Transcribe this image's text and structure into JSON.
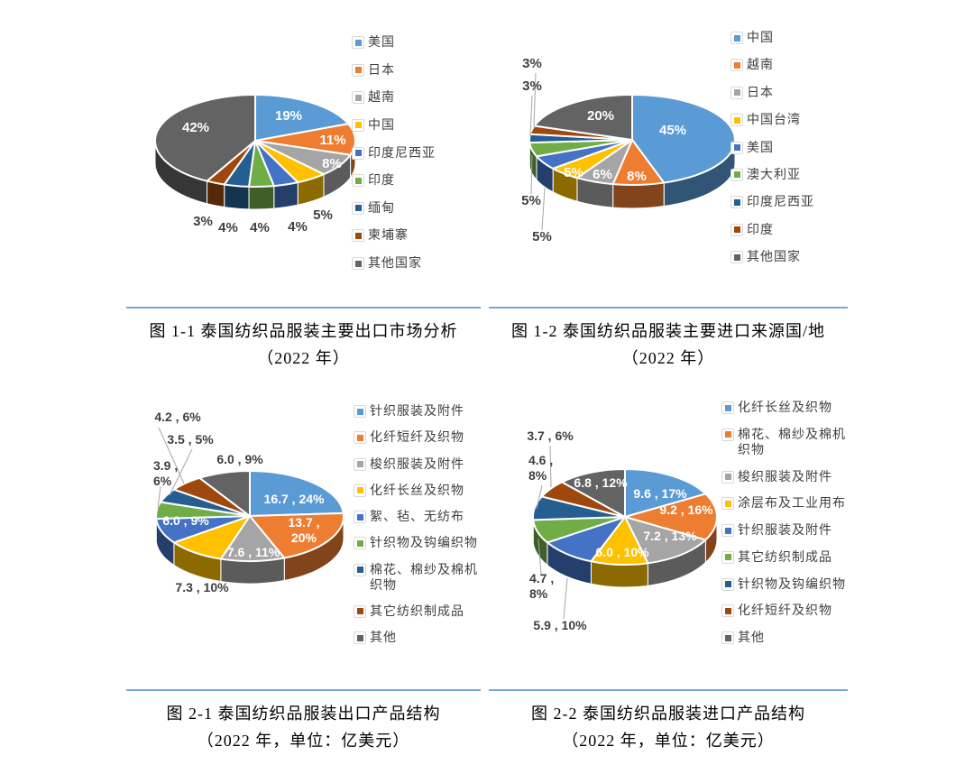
{
  "page": {
    "background": "#FFFFFF"
  },
  "palette": [
    "#5B9BD5",
    "#ED7D31",
    "#A5A5A5",
    "#FFC000",
    "#4472C4",
    "#70AD47",
    "#255E91",
    "#9E480E",
    "#636363"
  ],
  "styles": {
    "divider_color": "#79A7D9",
    "label_in_color": "#FFFFFF",
    "label_out_color": "#3F3F3F",
    "legend_text_color": "#404040",
    "leader_line_color": "#A6A6A6"
  },
  "chart_data": [
    {
      "id": "fig-1-1",
      "type": "pie",
      "title": "图 1-1 泰国纺织品服装主要出口市场分析",
      "subtitle": "（2022 年）",
      "legend_position": "right",
      "categories": [
        "美国",
        "日本",
        "越南",
        "中国",
        "印度尼西亚",
        "印度",
        "缅甸",
        "柬埔寨",
        "其他国家"
      ],
      "values": [
        19,
        11,
        8,
        5,
        4,
        4,
        4,
        3,
        42
      ],
      "slice_labels": [
        "19%",
        "11%",
        "8%",
        "5%",
        "4%",
        "4%",
        "4%",
        "3%",
        "42%"
      ]
    },
    {
      "id": "fig-1-2",
      "type": "pie",
      "title": "图 1-2 泰国纺织品服装主要进口来源国/地",
      "subtitle": "（2022 年）",
      "legend_position": "right",
      "categories": [
        "中国",
        "越南",
        "日本",
        "中国台湾",
        "美国",
        "澳大利亚",
        "印度尼西亚",
        "印度",
        "其他国家"
      ],
      "values": [
        45,
        8,
        6,
        5,
        5,
        5,
        3,
        3,
        20
      ],
      "slice_labels": [
        "45%",
        "8%",
        "6%",
        "5%",
        "5%",
        "5%",
        "3%",
        "3%",
        "20%"
      ]
    },
    {
      "id": "fig-2-1",
      "type": "pie",
      "title": "图 2-1 泰国纺织品服装出口产品结构",
      "subtitle": "（2022 年，单位：亿美元）",
      "unit": "亿美元",
      "legend_position": "right",
      "categories": [
        "针织服装及附件",
        "化纤短纤及织物",
        "梭织服装及附件",
        "化纤长丝及织物",
        "絮、毡、无纺布",
        "针织物及钩编织物",
        "棉花、棉纱及棉机织物",
        "其它纺织制成品",
        "其他"
      ],
      "amounts": [
        16.7,
        13.7,
        7.6,
        7.3,
        6.0,
        3.9,
        3.5,
        4.2,
        6.0
      ],
      "values": [
        24,
        20,
        11,
        10,
        9,
        6,
        5,
        6,
        9
      ],
      "slice_labels": [
        "16.7 , 24%",
        "13.7 ,\n20%",
        "7.6 , 11%",
        "7.3 , 10%",
        "6.0 , 9%",
        "3.9 ,\n6%",
        "3.5 , 5%",
        "4.2 , 6%",
        "6.0 , 9%"
      ]
    },
    {
      "id": "fig-2-2",
      "type": "pie",
      "title": "图 2-2 泰国纺织品服装进口产品结构",
      "subtitle": "（2022 年，单位：亿美元）",
      "unit": "亿美元",
      "categories": [
        "化纤长丝及织物",
        "棉花、棉纱及棉机织物",
        "梭织服装及附件",
        "涂层布及工业用布",
        "针织服装及附件",
        "其它纺织制成品",
        "针织物及钩编织物",
        "化纤短纤及织物",
        "其他"
      ],
      "amounts": [
        9.6,
        9.2,
        7.2,
        6.0,
        5.9,
        4.7,
        4.6,
        3.7,
        6.8
      ],
      "values": [
        17,
        16,
        13,
        10,
        10,
        8,
        8,
        6,
        12
      ],
      "slice_labels": [
        "9.6 , 17%",
        "9.2 , 16%",
        "7.2 , 13%",
        "6.0 , 10%",
        "5.9 , 10%",
        "4.7 ,\n8%",
        "4.6 ,\n8%",
        "3.7 , 6%",
        "6.8 , 12%"
      ],
      "legend_position": "right"
    }
  ]
}
